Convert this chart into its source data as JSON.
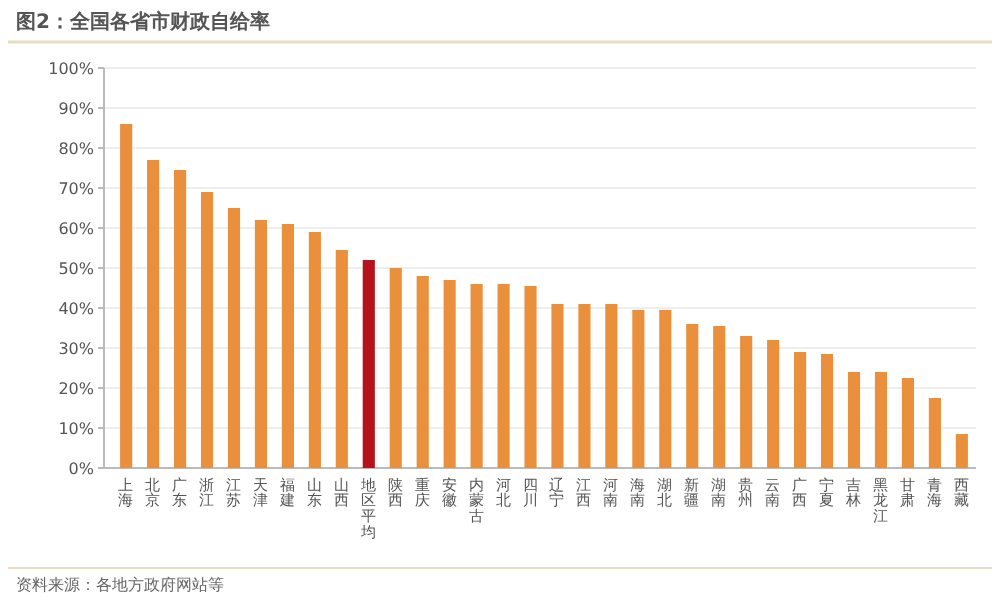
{
  "chart_data": {
    "type": "bar",
    "title": "图2：全国各省市财政自给率",
    "categories": [
      "上海",
      "北京",
      "广东",
      "浙江",
      "江苏",
      "天津",
      "福建",
      "山东",
      "山西",
      "地区平均",
      "陕西",
      "重庆",
      "安徽",
      "内蒙古",
      "河北",
      "四川",
      "辽宁",
      "江西",
      "河南",
      "海南",
      "湖北",
      "新疆",
      "湖南",
      "贵州",
      "云南",
      "广西",
      "宁夏",
      "吉林",
      "黑龙江",
      "甘肃",
      "青海",
      "西藏"
    ],
    "values": [
      0.86,
      0.77,
      0.745,
      0.69,
      0.65,
      0.62,
      0.61,
      0.59,
      0.545,
      0.52,
      0.5,
      0.48,
      0.47,
      0.46,
      0.46,
      0.455,
      0.41,
      0.41,
      0.41,
      0.395,
      0.395,
      0.36,
      0.355,
      0.33,
      0.32,
      0.29,
      0.285,
      0.24,
      0.24,
      0.225,
      0.175,
      0.085
    ],
    "colors": [
      "#ea8f3c",
      "#ea8f3c",
      "#ea8f3c",
      "#ea8f3c",
      "#ea8f3c",
      "#ea8f3c",
      "#ea8f3c",
      "#ea8f3c",
      "#ea8f3c",
      "#b5121b",
      "#ea8f3c",
      "#ea8f3c",
      "#ea8f3c",
      "#ea8f3c",
      "#ea8f3c",
      "#ea8f3c",
      "#ea8f3c",
      "#ea8f3c",
      "#ea8f3c",
      "#ea8f3c",
      "#ea8f3c",
      "#ea8f3c",
      "#ea8f3c",
      "#ea8f3c",
      "#ea8f3c",
      "#ea8f3c",
      "#ea8f3c",
      "#ea8f3c",
      "#ea8f3c",
      "#ea8f3c",
      "#ea8f3c",
      "#ea8f3c"
    ],
    "ylim": [
      0,
      1
    ],
    "yticks": [
      {
        "value": 0,
        "label": "0%"
      },
      {
        "value": 0.1,
        "label": "10%"
      },
      {
        "value": 0.2,
        "label": "20%"
      },
      {
        "value": 0.3,
        "label": "30%"
      },
      {
        "value": 0.4,
        "label": "40%"
      },
      {
        "value": 0.5,
        "label": "50%"
      },
      {
        "value": 0.6,
        "label": "60%"
      },
      {
        "value": 0.7,
        "label": "70%"
      },
      {
        "value": 0.8,
        "label": "80%"
      },
      {
        "value": 0.9,
        "label": "90%"
      },
      {
        "value": 1,
        "label": "100%"
      }
    ],
    "grid": "y",
    "annotations": [
      "资料来源：各地方政府网站等"
    ]
  }
}
